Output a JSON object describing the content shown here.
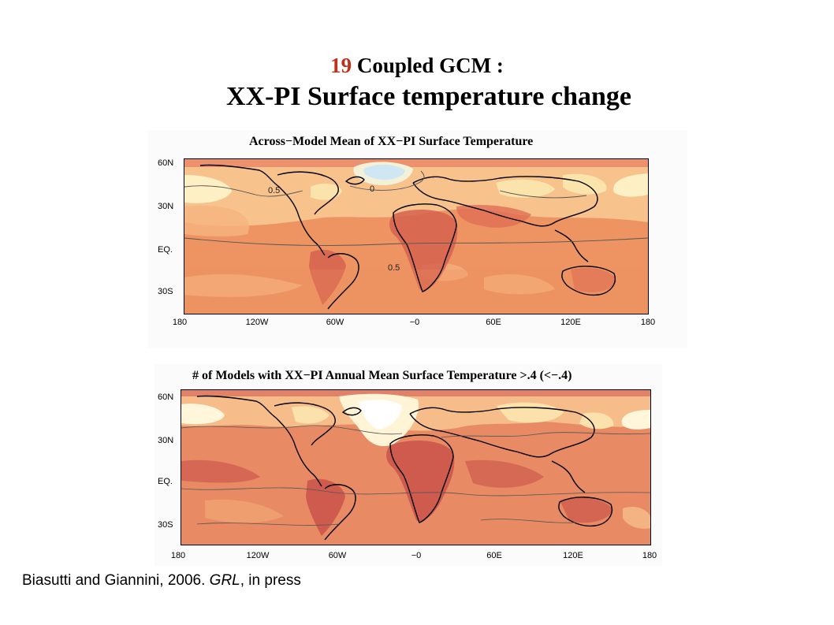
{
  "slide": {
    "title_number": "19",
    "title_rest": " Coupled GCM :",
    "subtitle": "XX-PI Surface temperature change"
  },
  "maps": [
    {
      "title": "Across−Model Mean of XX−PI Surface Temperature",
      "lat_labels": [
        "60N",
        "30N",
        "EQ.",
        "30S"
      ],
      "lon_labels": [
        "180",
        "120W",
        "60W",
        "−0",
        "60E",
        "120E",
        "180"
      ],
      "contour_labels": [
        "0.5",
        "0",
        "0.5"
      ]
    },
    {
      "title": "# of Models with XX−PI Annual Mean Surface Temperature >.4 (<−.4)",
      "lat_labels": [
        "60N",
        "30N",
        "EQ.",
        "30S"
      ],
      "lon_labels": [
        "180",
        "120W",
        "60W",
        "−0",
        "60E",
        "120E",
        "180"
      ]
    }
  ],
  "citation": {
    "authors": "Biasutti and Giannini, 2006. ",
    "journal": "GRL",
    "rest": ", in press"
  }
}
